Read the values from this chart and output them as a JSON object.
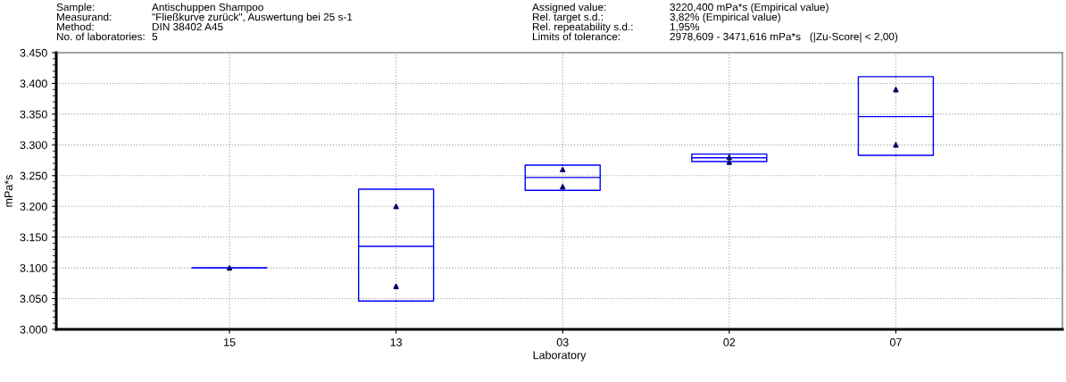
{
  "chart_data": {
    "type": "box",
    "xlabel": "Laboratory",
    "ylabel": "mPa*s",
    "categories": [
      "15",
      "13",
      "03",
      "02",
      "07"
    ],
    "boxes": [
      {
        "low": 3100,
        "q1": 3100,
        "median": 3100,
        "q3": 3100,
        "high": 3100
      },
      {
        "low": 3046,
        "q1": 3046,
        "median": 3135,
        "q3": 3228,
        "high": 3228
      },
      {
        "low": 3226,
        "q1": 3226,
        "median": 3247,
        "q3": 3267,
        "high": 3267
      },
      {
        "low": 3273,
        "q1": 3273,
        "median": 3279,
        "q3": 3285,
        "high": 3285
      },
      {
        "low": 3283,
        "q1": 3283,
        "median": 3346,
        "q3": 3411,
        "high": 3411
      }
    ],
    "color": "#0000ff",
    "series": [
      {
        "type": "scatter",
        "color": "#000066",
        "marker": "triangle",
        "x": [
          "15",
          "13",
          "13",
          "03",
          "03",
          "02",
          "02",
          "07",
          "07"
        ],
        "values": [
          3100,
          3200,
          3070,
          3260,
          3232,
          3280,
          3272,
          3390,
          3300
        ]
      }
    ],
    "ylim": [
      3000,
      3450
    ],
    "yticks": [
      {
        "value": 3000,
        "label": "3.000"
      },
      {
        "value": 3050,
        "label": "3.050"
      },
      {
        "value": 3100,
        "label": "3.100"
      },
      {
        "value": 3150,
        "label": "3.150"
      },
      {
        "value": 3200,
        "label": "3.200"
      },
      {
        "value": 3250,
        "label": "3.250"
      },
      {
        "value": 3300,
        "label": "3.300"
      },
      {
        "value": 3350,
        "label": "3.350"
      },
      {
        "value": 3400,
        "label": "3.400"
      },
      {
        "value": 3450,
        "label": "3.450"
      }
    ],
    "grid": true,
    "legend": false,
    "annotations": [
      "Sample:",
      "Antischuppen Shampoo",
      "Measurand:",
      "\"Fließkurve zurück\", Auswertung bei 25 s-1",
      "Method:",
      "DIN 38402 A45",
      "No. of laboratories:",
      "5",
      "Assigned value:",
      "3220,400 mPa*s (Empirical value)",
      "Rel. target s.d.:",
      "3,82% (Empirical value)",
      "Rel. repeatability s.d.:",
      "1,95%",
      "Limits of tolerance:",
      "2978,609 - 3471,616 mPa*s   (|Zu-Score| < 2,00)"
    ]
  }
}
